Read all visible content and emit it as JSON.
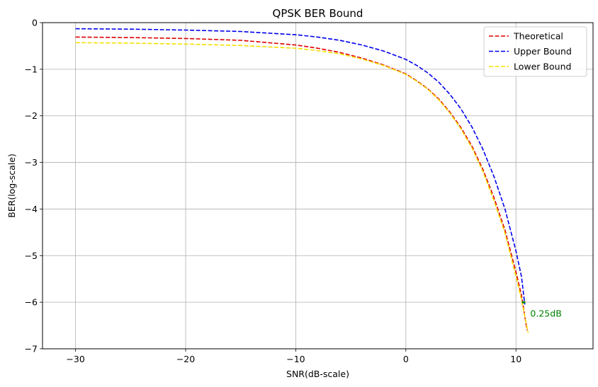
{
  "chart_data": {
    "type": "line",
    "title": "QPSK BER Bound",
    "xlabel": "SNR(dB-scale)",
    "ylabel": "BER(log-scale)",
    "xlim": [
      -33,
      17
    ],
    "ylim": [
      -7,
      0
    ],
    "x_ticks": [
      -30,
      -20,
      -10,
      0,
      10
    ],
    "y_ticks": [
      0,
      -1,
      -2,
      -3,
      -4,
      -5,
      -6,
      -7
    ],
    "x_tick_labels": [
      "−30",
      "−20",
      "−10",
      "0",
      "10"
    ],
    "y_tick_labels": [
      "0",
      "−1",
      "−2",
      "−3",
      "−4",
      "−5",
      "−6",
      "−7"
    ],
    "grid": true,
    "legend_position": "top-right",
    "series": [
      {
        "name": "Theoretical",
        "color": "#e00000",
        "style": "dashed",
        "x": [
          -30,
          -25,
          -20,
          -15,
          -10,
          -8,
          -6,
          -4,
          -2,
          0,
          1,
          2,
          3,
          4,
          5,
          6,
          7,
          8,
          9,
          10,
          10.5,
          11
        ],
        "values": [
          -0.31,
          -0.32,
          -0.34,
          -0.38,
          -0.48,
          -0.55,
          -0.64,
          -0.76,
          -0.91,
          -1.1,
          -1.25,
          -1.42,
          -1.64,
          -1.92,
          -2.25,
          -2.65,
          -3.15,
          -3.75,
          -4.45,
          -5.35,
          -5.85,
          -6.6
        ]
      },
      {
        "name": "Upper Bound",
        "color": "#0000ee",
        "style": "dashed",
        "x": [
          -30,
          -25,
          -20,
          -15,
          -10,
          -8,
          -6,
          -4,
          -2,
          0,
          1,
          2,
          3,
          4,
          5,
          6,
          7,
          8,
          9,
          10,
          10.5,
          10.8
        ],
        "values": [
          -0.13,
          -0.14,
          -0.16,
          -0.19,
          -0.26,
          -0.31,
          -0.38,
          -0.48,
          -0.61,
          -0.79,
          -0.92,
          -1.08,
          -1.28,
          -1.54,
          -1.85,
          -2.24,
          -2.72,
          -3.3,
          -4.0,
          -4.9,
          -5.45,
          -6.05
        ]
      },
      {
        "name": "Lower Bound",
        "color": "#f5e000",
        "style": "dashed",
        "x": [
          -30,
          -25,
          -20,
          -15,
          -10,
          -8,
          -6,
          -4,
          -2,
          0,
          1,
          2,
          3,
          4,
          5,
          6,
          7,
          8,
          9,
          10,
          10.5,
          11.1
        ],
        "values": [
          -0.43,
          -0.44,
          -0.46,
          -0.49,
          -0.55,
          -0.6,
          -0.67,
          -0.78,
          -0.92,
          -1.11,
          -1.26,
          -1.43,
          -1.66,
          -1.94,
          -2.28,
          -2.69,
          -3.2,
          -3.82,
          -4.52,
          -5.45,
          -5.95,
          -6.65
        ]
      }
    ],
    "annotation": {
      "text": "0.25dB",
      "x": 11.3,
      "y": -6.25,
      "color": "#008000",
      "marker_x": [
        10.55,
        10.85
      ],
      "marker_y": -6.0
    }
  }
}
